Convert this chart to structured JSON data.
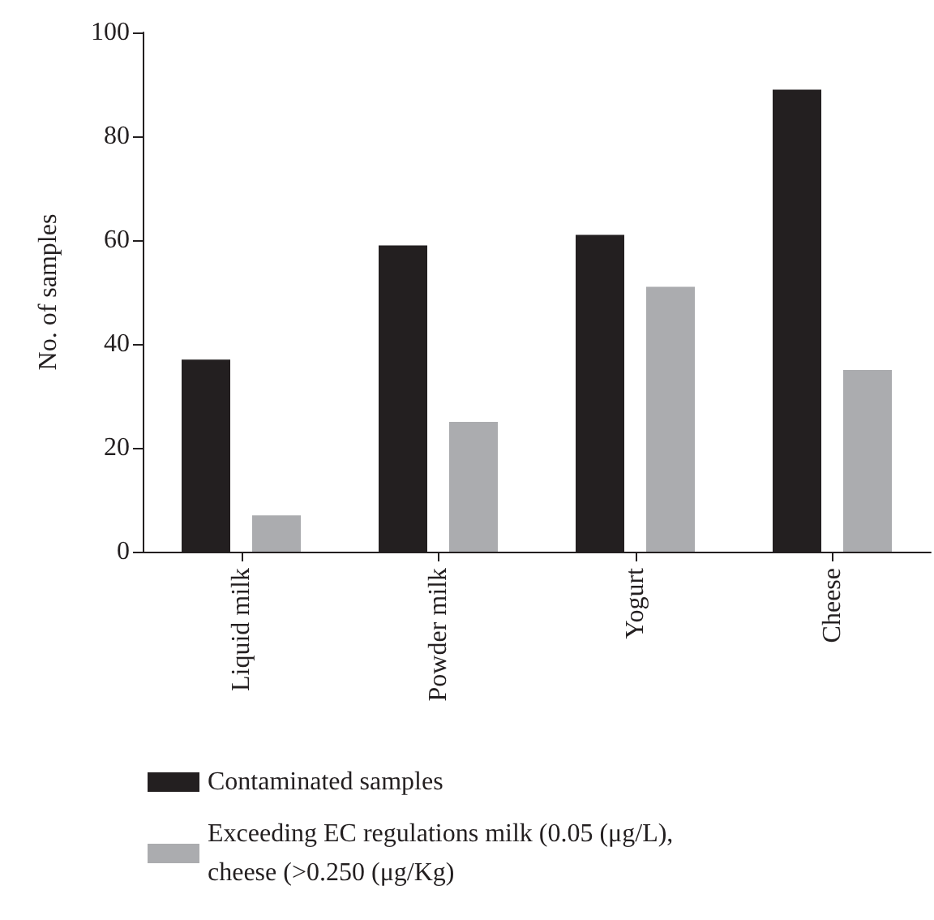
{
  "chart_data": {
    "type": "bar",
    "ylabel": "No. of samples",
    "categories": [
      "Liquid milk",
      "Powder milk",
      "Yogurt",
      "Cheese"
    ],
    "series": [
      {
        "name": "Contaminated samples",
        "color": "#231f20",
        "values": [
          37,
          59,
          61,
          89
        ]
      },
      {
        "name": "Exceeding EC regulations milk (0.05 (μg/L), cheese (>0.250 (μg/Kg)",
        "color": "#abacaf",
        "values": [
          7,
          25,
          51,
          35
        ]
      }
    ],
    "ylim": [
      0,
      100
    ],
    "yticks": [
      0,
      20,
      40,
      60,
      80,
      100
    ],
    "grid": false,
    "legend": "bottom"
  }
}
